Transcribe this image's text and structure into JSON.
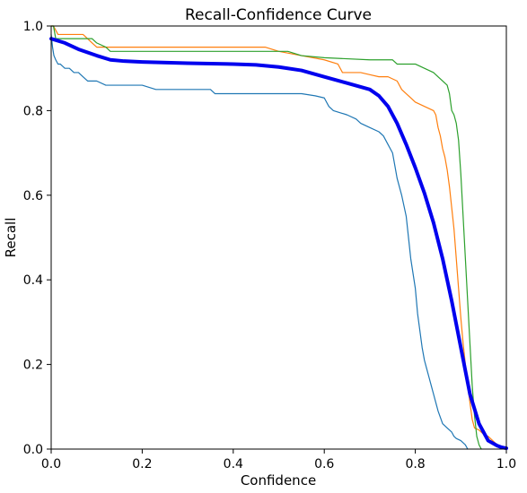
{
  "chart_data": {
    "type": "line",
    "title": "Recall-Confidence Curve",
    "xlabel": "Confidence",
    "ylabel": "Recall",
    "xlim": [
      0,
      1
    ],
    "ylim": [
      0,
      1
    ],
    "xticks": [
      "0.0",
      "0.2",
      "0.4",
      "0.6",
      "0.8",
      "1.0"
    ],
    "yticks": [
      "0.0",
      "0.2",
      "0.4",
      "0.6",
      "0.8",
      "1.0"
    ],
    "grid": false,
    "series": [
      {
        "color": "#1f77b4",
        "width": 1.2,
        "x": [
          0.0,
          0.003,
          0.006,
          0.01,
          0.015,
          0.02,
          0.03,
          0.04,
          0.05,
          0.06,
          0.07,
          0.08,
          0.1,
          0.12,
          0.15,
          0.2,
          0.23,
          0.3,
          0.35,
          0.36,
          0.4,
          0.5,
          0.55,
          0.58,
          0.6,
          0.61,
          0.62,
          0.65,
          0.67,
          0.68,
          0.7,
          0.72,
          0.73,
          0.74,
          0.75,
          0.755,
          0.76,
          0.77,
          0.78,
          0.785,
          0.79,
          0.8,
          0.805,
          0.81,
          0.815,
          0.82,
          0.825,
          0.83,
          0.835,
          0.84,
          0.845,
          0.85,
          0.86,
          0.87,
          0.88,
          0.885,
          0.89,
          0.9,
          0.91,
          0.915
        ],
        "y": [
          0.98,
          0.95,
          0.93,
          0.92,
          0.91,
          0.91,
          0.9,
          0.9,
          0.89,
          0.89,
          0.88,
          0.87,
          0.87,
          0.86,
          0.86,
          0.86,
          0.85,
          0.85,
          0.85,
          0.84,
          0.84,
          0.84,
          0.84,
          0.835,
          0.83,
          0.81,
          0.8,
          0.79,
          0.78,
          0.77,
          0.76,
          0.75,
          0.74,
          0.72,
          0.7,
          0.67,
          0.64,
          0.6,
          0.55,
          0.5,
          0.45,
          0.38,
          0.32,
          0.28,
          0.24,
          0.21,
          0.19,
          0.17,
          0.15,
          0.13,
          0.11,
          0.09,
          0.06,
          0.05,
          0.04,
          0.03,
          0.025,
          0.02,
          0.01,
          0.0
        ]
      },
      {
        "color": "#ff7f0e",
        "width": 1.2,
        "x": [
          0.0,
          0.005,
          0.01,
          0.015,
          0.02,
          0.03,
          0.05,
          0.07,
          0.08,
          0.09,
          0.1,
          0.12,
          0.13,
          0.2,
          0.3,
          0.4,
          0.47,
          0.5,
          0.55,
          0.6,
          0.63,
          0.64,
          0.66,
          0.68,
          0.7,
          0.72,
          0.74,
          0.76,
          0.77,
          0.78,
          0.79,
          0.8,
          0.82,
          0.84,
          0.845,
          0.85,
          0.855,
          0.86,
          0.865,
          0.87,
          0.875,
          0.88,
          0.885,
          0.89,
          0.895,
          0.9,
          0.905,
          0.91,
          0.915,
          0.92,
          0.925,
          0.93,
          0.94,
          0.95,
          0.96,
          0.97,
          0.98,
          0.99,
          1.0
        ],
        "y": [
          1.0,
          1.0,
          0.99,
          0.98,
          0.98,
          0.98,
          0.98,
          0.98,
          0.97,
          0.96,
          0.95,
          0.95,
          0.95,
          0.95,
          0.95,
          0.95,
          0.95,
          0.94,
          0.93,
          0.92,
          0.91,
          0.89,
          0.89,
          0.89,
          0.885,
          0.88,
          0.88,
          0.87,
          0.85,
          0.84,
          0.83,
          0.82,
          0.81,
          0.8,
          0.79,
          0.76,
          0.74,
          0.71,
          0.69,
          0.66,
          0.62,
          0.57,
          0.52,
          0.45,
          0.38,
          0.31,
          0.25,
          0.2,
          0.15,
          0.11,
          0.07,
          0.05,
          0.045,
          0.035,
          0.03,
          0.02,
          0.01,
          0.005,
          0.0
        ]
      },
      {
        "color": "#2ca02c",
        "width": 1.2,
        "x": [
          0.0,
          0.005,
          0.01,
          0.05,
          0.08,
          0.09,
          0.1,
          0.12,
          0.13,
          0.2,
          0.3,
          0.4,
          0.5,
          0.52,
          0.55,
          0.6,
          0.7,
          0.75,
          0.76,
          0.8,
          0.82,
          0.84,
          0.85,
          0.86,
          0.87,
          0.875,
          0.88,
          0.885,
          0.89,
          0.895,
          0.9,
          0.905,
          0.91,
          0.915,
          0.92,
          0.925,
          0.93,
          0.935,
          0.94,
          0.945
        ],
        "y": [
          1.0,
          1.0,
          0.97,
          0.97,
          0.97,
          0.97,
          0.96,
          0.95,
          0.94,
          0.94,
          0.94,
          0.94,
          0.94,
          0.94,
          0.93,
          0.925,
          0.92,
          0.92,
          0.91,
          0.91,
          0.9,
          0.89,
          0.88,
          0.87,
          0.86,
          0.84,
          0.8,
          0.79,
          0.77,
          0.73,
          0.65,
          0.55,
          0.45,
          0.35,
          0.25,
          0.15,
          0.08,
          0.03,
          0.01,
          0.0
        ]
      },
      {
        "color": "#0000ee",
        "width": 4,
        "x": [
          0.0,
          0.03,
          0.06,
          0.1,
          0.13,
          0.16,
          0.2,
          0.3,
          0.4,
          0.45,
          0.5,
          0.55,
          0.6,
          0.65,
          0.7,
          0.72,
          0.74,
          0.76,
          0.78,
          0.8,
          0.82,
          0.84,
          0.86,
          0.88,
          0.9,
          0.92,
          0.94,
          0.96,
          0.98,
          0.99,
          1.0
        ],
        "y": [
          0.97,
          0.96,
          0.945,
          0.93,
          0.92,
          0.917,
          0.915,
          0.912,
          0.91,
          0.908,
          0.903,
          0.895,
          0.88,
          0.865,
          0.85,
          0.835,
          0.81,
          0.77,
          0.72,
          0.665,
          0.605,
          0.535,
          0.45,
          0.35,
          0.24,
          0.13,
          0.06,
          0.02,
          0.008,
          0.004,
          0.002
        ]
      }
    ]
  }
}
